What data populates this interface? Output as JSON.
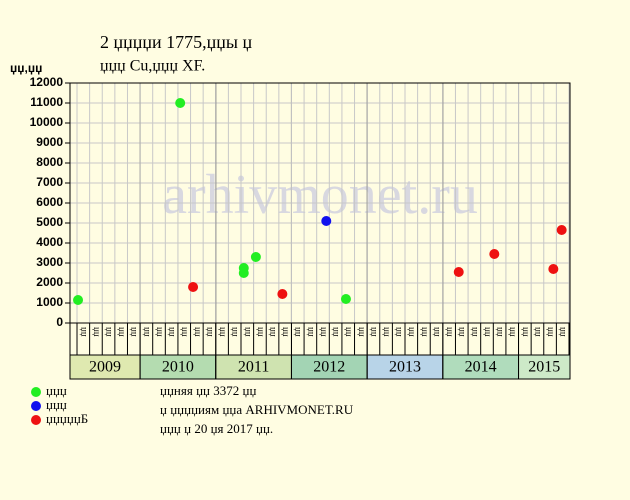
{
  "chart_data": {
    "type": "scatter",
    "title": "2 џџџџи 1775,џџы џ",
    "subtitle": "џџџ Cu,џџџ XF.",
    "y_label": "џџ,џџ",
    "watermark": "arhivmonet.ru",
    "xlim": [
      2009.074,
      2015.68
    ],
    "ylim": [
      0,
      12000
    ],
    "yticks": [
      0,
      1000,
      2000,
      3000,
      4000,
      5000,
      6000,
      7000,
      8000,
      9000,
      10000,
      11000,
      12000
    ],
    "year_ticks": [
      {
        "value": 2009,
        "label": "2009",
        "color": "#dfe9b0"
      },
      {
        "value": 2010,
        "label": "2010",
        "color": "#b4dcb0"
      },
      {
        "value": 2011,
        "label": "2011",
        "color": "#cfe3b0"
      },
      {
        "value": 2012,
        "label": "2012",
        "color": "#a3d4b4"
      },
      {
        "value": 2013,
        "label": "2013",
        "color": "#b8d4e8"
      },
      {
        "value": 2014,
        "label": "2014",
        "color": "#b0dcbc"
      },
      {
        "value": 2015,
        "label": "2015",
        "color": "#cde9c8"
      }
    ],
    "period_labels": [
      "џџ",
      "џџ",
      "џџ",
      "џџ",
      "џџ",
      "џџ"
    ],
    "grid": true,
    "series": [
      {
        "name": "џџџ",
        "color": "#22ee22",
        "x": [
          2009.18,
          2010.53,
          2011.37,
          2011.37,
          2011.53,
          2012.72
        ],
        "values": [
          1150,
          11000,
          2750,
          2500,
          3300,
          1200
        ]
      },
      {
        "name": "џџџ",
        "color": "#1111ee",
        "x": [
          2012.46
        ],
        "values": [
          5100
        ]
      },
      {
        "name": "џџџџџБ",
        "color": "#ee1111",
        "x": [
          2010.7,
          2011.88,
          2014.21,
          2014.68,
          2015.46,
          2015.57
        ],
        "values": [
          1800,
          1450,
          2550,
          3450,
          2700,
          4650
        ]
      }
    ],
    "notes": [
      "џџняя џџ 3372 џџ",
      "џ џџџџиям џџа ARHIVMONET.RU",
      "џџџ џ 20 џя 2017 џџ."
    ]
  }
}
